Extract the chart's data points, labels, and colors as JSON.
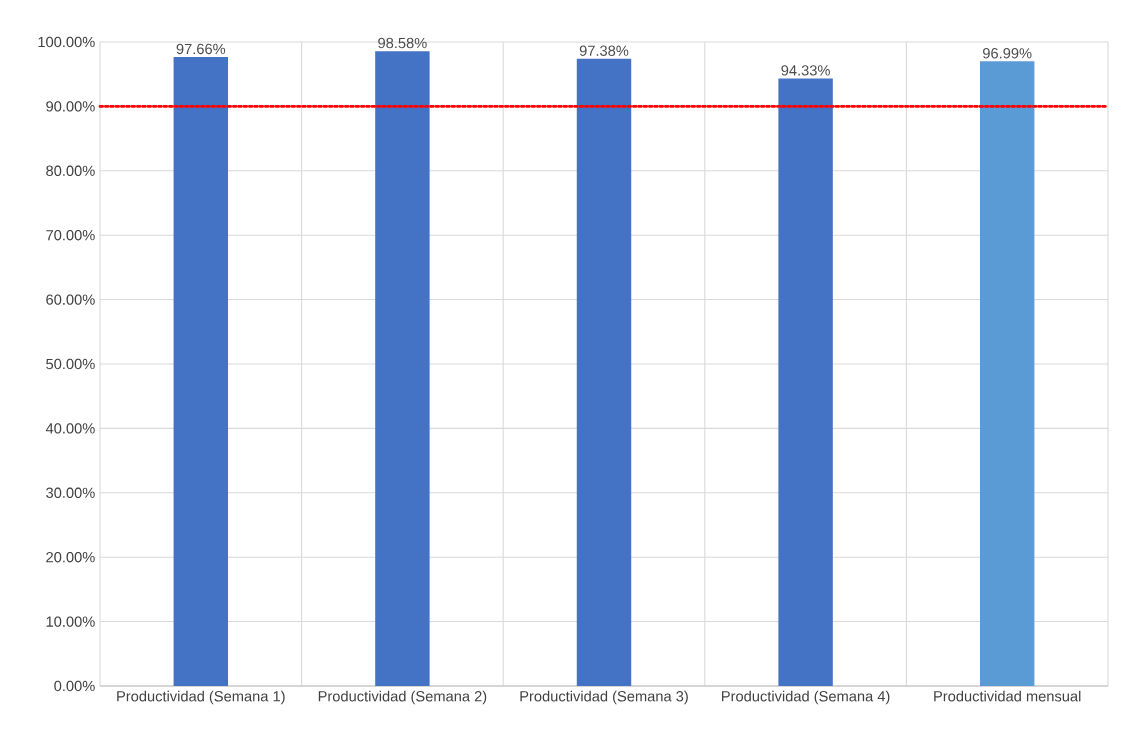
{
  "chart_data": {
    "type": "bar",
    "categories": [
      "Productividad (Semana 1)",
      "Productividad (Semana 2)",
      "Productividad (Semana 3)",
      "Productividad (Semana 4)",
      "Productividad mensual"
    ],
    "values": [
      97.66,
      98.58,
      97.38,
      94.33,
      96.99
    ],
    "colors": [
      "#4472c4",
      "#4472c4",
      "#4472c4",
      "#4472c4",
      "#5b9bd5"
    ],
    "value_labels": [
      "97.66%",
      "98.58%",
      "97.38%",
      "94.33%",
      "96.99%"
    ],
    "ylim": [
      0,
      100
    ],
    "yticks": [
      {
        "value": 0,
        "label": "0.00%"
      },
      {
        "value": 10,
        "label": "10.00%"
      },
      {
        "value": 20,
        "label": "20.00%"
      },
      {
        "value": 30,
        "label": "30.00%"
      },
      {
        "value": 40,
        "label": "40.00%"
      },
      {
        "value": 50,
        "label": "50.00%"
      },
      {
        "value": 60,
        "label": "60.00%"
      },
      {
        "value": 70,
        "label": "70.00%"
      },
      {
        "value": 80,
        "label": "80.00%"
      },
      {
        "value": 90,
        "label": "90.00%"
      },
      {
        "value": 100,
        "label": "100.00%"
      }
    ],
    "ref_lines": [
      {
        "axis": "y",
        "value": 90,
        "color": "#ff0000",
        "line_style": "dotted"
      }
    ],
    "grid": true
  }
}
